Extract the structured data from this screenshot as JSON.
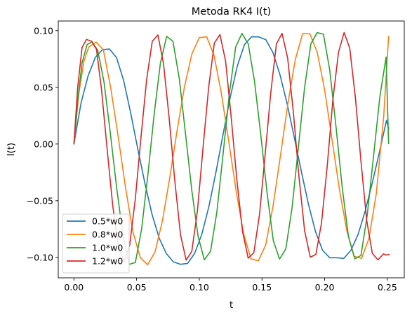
{
  "chart_data": {
    "type": "line",
    "title": "Metoda RK4 I(t)",
    "xlabel": "t",
    "ylabel": "I(t)",
    "xlim": [
      -0.0125,
      0.2635
    ],
    "ylim": [
      -0.118,
      0.1085
    ],
    "xticks": [
      0.0,
      0.05,
      0.1,
      0.15,
      0.2,
      0.25
    ],
    "xtick_labels": [
      "0.00",
      "0.05",
      "0.10",
      "0.15",
      "0.20",
      "0.25"
    ],
    "yticks": [
      -0.1,
      -0.05,
      0.0,
      0.05,
      0.1
    ],
    "ytick_labels": [
      "−0.10",
      "−0.05",
      "0.00",
      "0.05",
      "0.10"
    ],
    "grid": false,
    "legend_position": "lower-left",
    "series": [
      {
        "name": "0.5*w0",
        "color": "#1f77b4",
        "x": [
          0,
          0.0057,
          0.0113,
          0.017,
          0.0227,
          0.0283,
          0.034,
          0.0397,
          0.0453,
          0.051,
          0.0567,
          0.0623,
          0.068,
          0.0737,
          0.0793,
          0.085,
          0.0907,
          0.0963,
          0.102,
          0.1077,
          0.1133,
          0.119,
          0.1247,
          0.1303,
          0.136,
          0.1417,
          0.1473,
          0.153,
          0.1587,
          0.1643,
          0.17,
          0.1757,
          0.1813,
          0.187,
          0.1927,
          0.1983,
          0.204,
          0.2097,
          0.2153,
          0.221,
          0.2267,
          0.2323,
          0.238,
          0.2437,
          0.2493,
          0.251
        ],
        "y": [
          0,
          0.0363,
          0.0601,
          0.0763,
          0.0832,
          0.0838,
          0.0762,
          0.0558,
          0.0272,
          -0.0048,
          -0.0351,
          -0.062,
          -0.083,
          -0.0966,
          -0.1039,
          -0.1061,
          -0.1053,
          -0.0964,
          -0.0796,
          -0.0549,
          -0.0247,
          0.0087,
          0.0413,
          0.0687,
          0.0877,
          0.0946,
          0.0945,
          0.0921,
          0.0808,
          0.0613,
          0.0358,
          0.0062,
          -0.0237,
          -0.0528,
          -0.0773,
          -0.0937,
          -0.1003,
          -0.1003,
          -0.1009,
          -0.0936,
          -0.0796,
          -0.0591,
          -0.0342,
          -0.0071,
          0.0209,
          0.0135
        ]
      },
      {
        "name": "0.8*w0",
        "color": "#ff7f0e",
        "x": [
          0,
          0.004,
          0.008,
          0.0118,
          0.0177,
          0.0235,
          0.0294,
          0.0353,
          0.0412,
          0.047,
          0.0529,
          0.0588,
          0.0647,
          0.0706,
          0.0765,
          0.0824,
          0.0882,
          0.0941,
          0.1,
          0.1059,
          0.1118,
          0.1176,
          0.1235,
          0.1294,
          0.1353,
          0.1412,
          0.1471,
          0.1529,
          0.1588,
          0.1647,
          0.1706,
          0.1765,
          0.1824,
          0.1882,
          0.1941,
          0.2,
          0.2059,
          0.2118,
          0.2176,
          0.2235,
          0.2294,
          0.2353,
          0.2412,
          0.2471,
          0.251
        ],
        "y": [
          0,
          0.0452,
          0.0731,
          0.0855,
          0.0899,
          0.083,
          0.0492,
          0.0066,
          -0.0386,
          -0.0772,
          -0.1001,
          -0.1065,
          -0.0952,
          -0.0676,
          -0.0293,
          0.0126,
          0.0506,
          0.0795,
          0.0938,
          0.0946,
          0.0781,
          0.0446,
          0.0022,
          -0.0413,
          -0.0789,
          -0.1012,
          -0.103,
          -0.0893,
          -0.0549,
          -0.0104,
          0.0351,
          0.0741,
          0.0974,
          0.0972,
          0.0808,
          0.0476,
          0.0037,
          -0.0402,
          -0.076,
          -0.099,
          -0.1009,
          -0.0834,
          -0.0436,
          0.0247,
          0.0949
        ]
      },
      {
        "name": "1.0*w0",
        "color": "#2ca02c",
        "x": [
          0,
          0.003,
          0.0065,
          0.0105,
          0.0145,
          0.019,
          0.024,
          0.029,
          0.034,
          0.039,
          0.044,
          0.049,
          0.054,
          0.059,
          0.064,
          0.069,
          0.074,
          0.079,
          0.084,
          0.089,
          0.094,
          0.099,
          0.104,
          0.109,
          0.114,
          0.119,
          0.124,
          0.129,
          0.134,
          0.139,
          0.144,
          0.149,
          0.154,
          0.159,
          0.164,
          0.169,
          0.174,
          0.179,
          0.184,
          0.189,
          0.194,
          0.199,
          0.204,
          0.209,
          0.214,
          0.219,
          0.224,
          0.229,
          0.234,
          0.239,
          0.244,
          0.249,
          0.251
        ],
        "y": [
          0,
          0.0381,
          0.0716,
          0.0877,
          0.0902,
          0.0826,
          0.0546,
          0.0099,
          -0.0378,
          -0.0796,
          -0.1061,
          -0.1045,
          -0.0749,
          -0.027,
          0.0263,
          0.0716,
          0.095,
          0.0905,
          0.058,
          0.009,
          -0.0406,
          -0.0812,
          -0.1021,
          -0.0945,
          -0.0601,
          -0.0086,
          0.0445,
          0.0855,
          0.0975,
          0.0885,
          0.0556,
          0.0086,
          -0.0426,
          -0.085,
          -0.1015,
          -0.0925,
          -0.0562,
          -0.0034,
          0.0499,
          0.0884,
          0.0982,
          0.0969,
          0.0655,
          0.0157,
          -0.0383,
          -0.0818,
          -0.1013,
          -0.0982,
          -0.0622,
          -0.0105,
          0.0415,
          0.0767,
          0.0003
        ]
      },
      {
        "name": "1.2*w0",
        "color": "#d62728",
        "x": [
          0,
          0.003,
          0.0065,
          0.01,
          0.014,
          0.018,
          0.022,
          0.0265,
          0.031,
          0.0355,
          0.04,
          0.0445,
          0.049,
          0.0535,
          0.058,
          0.0625,
          0.067,
          0.0715,
          0.076,
          0.0805,
          0.085,
          0.0895,
          0.094,
          0.0985,
          0.103,
          0.1075,
          0.112,
          0.1165,
          0.121,
          0.1255,
          0.13,
          0.1345,
          0.139,
          0.1435,
          0.148,
          0.1525,
          0.157,
          0.1615,
          0.166,
          0.1705,
          0.175,
          0.1795,
          0.184,
          0.1885,
          0.193,
          0.1975,
          0.202,
          0.2065,
          0.211,
          0.2155,
          0.22,
          0.2245,
          0.229,
          0.2335,
          0.238,
          0.2425,
          0.247,
          0.249,
          0.2515
        ],
        "y": [
          0,
          0.05,
          0.0852,
          0.0922,
          0.0907,
          0.0835,
          0.0481,
          -0.0047,
          -0.0547,
          -0.0905,
          -0.1035,
          -0.0891,
          -0.048,
          0.006,
          0.0569,
          0.0906,
          0.0962,
          0.0705,
          0.0225,
          -0.0328,
          -0.0799,
          -0.1024,
          -0.0948,
          -0.059,
          -0.003,
          0.0503,
          0.089,
          0.0965,
          0.073,
          0.0229,
          -0.0319,
          -0.0773,
          -0.1007,
          -0.0959,
          -0.0624,
          -0.0096,
          0.0451,
          0.0882,
          0.0976,
          0.0756,
          0.0284,
          -0.029,
          -0.0764,
          -0.0998,
          -0.0974,
          -0.0695,
          -0.0199,
          0.0384,
          0.0807,
          0.0983,
          0.0845,
          0.041,
          -0.0158,
          -0.0672,
          -0.0963,
          -0.1022,
          -0.0969,
          -0.0979,
          -0.0974
        ]
      }
    ]
  }
}
